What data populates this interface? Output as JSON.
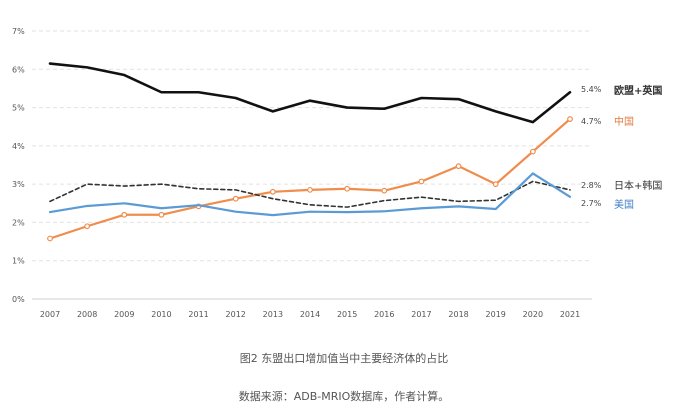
{
  "chart_data": {
    "type": "line",
    "x": [
      2007,
      2008,
      2009,
      2010,
      2011,
      2012,
      2013,
      2014,
      2015,
      2016,
      2017,
      2018,
      2019,
      2020,
      2021
    ],
    "ylim": [
      0,
      7
    ],
    "yticks": [
      0,
      1,
      2,
      3,
      4,
      5,
      6,
      7
    ],
    "ytick_labels": [
      "0%",
      "1%",
      "2%",
      "3%",
      "4%",
      "5%",
      "6%",
      "7%"
    ],
    "grid": true,
    "legend": "inline labels at line ends (right)",
    "series": [
      {
        "name": "欧盟+英国",
        "end_label": "5.4%",
        "color": "#111111",
        "style": "solid",
        "values": [
          6.15,
          6.05,
          5.85,
          5.4,
          5.4,
          5.25,
          4.9,
          5.18,
          5.0,
          4.97,
          5.25,
          5.22,
          4.9,
          4.62,
          5.4
        ]
      },
      {
        "name": "中国",
        "end_label": "4.7%",
        "color": "#F08C4C",
        "style": "solid-markers",
        "values": [
          1.58,
          1.9,
          2.2,
          2.2,
          2.42,
          2.62,
          2.8,
          2.85,
          2.88,
          2.83,
          3.07,
          3.47,
          3.0,
          3.85,
          4.7
        ]
      },
      {
        "name": "日本+韩国",
        "end_label": "2.8%",
        "color": "#333333",
        "style": "dashed",
        "values": [
          2.55,
          3.0,
          2.95,
          3.0,
          2.88,
          2.85,
          2.62,
          2.46,
          2.4,
          2.57,
          2.66,
          2.55,
          2.58,
          3.07,
          2.85
        ]
      },
      {
        "name": "美国",
        "end_label": "2.7%",
        "color": "#5B9BD5",
        "style": "solid",
        "values": [
          2.27,
          2.43,
          2.5,
          2.37,
          2.45,
          2.28,
          2.19,
          2.28,
          2.27,
          2.29,
          2.37,
          2.42,
          2.35,
          3.28,
          2.67
        ]
      }
    ]
  },
  "caption": {
    "title": "图2 东盟出口增加值当中主要经济体的占比",
    "source": "数据来源：ADB-MRIO数据库，作者计算。"
  }
}
